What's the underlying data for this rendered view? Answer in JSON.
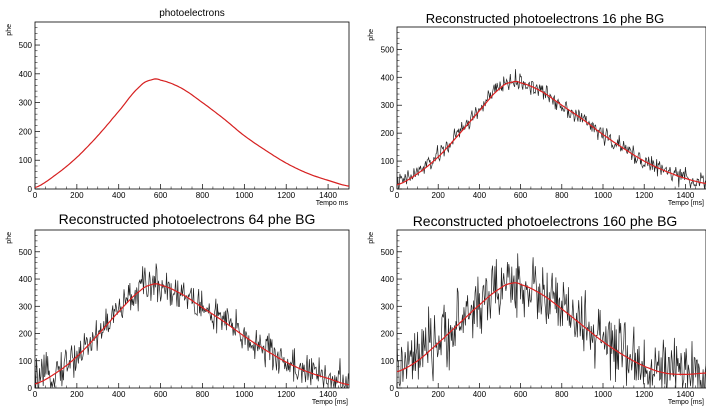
{
  "chart_data": [
    {
      "type": "line",
      "title": "photoelectrons",
      "xlabel": "Tempo ms",
      "ylabel": "phe",
      "xlim": [
        0,
        1500
      ],
      "ylim": [
        0,
        580
      ],
      "xticks": [
        "0",
        "200",
        "400",
        "600",
        "800",
        "1000",
        "1200",
        "1400"
      ],
      "yticks": [
        "0",
        "100",
        "200",
        "300",
        "400",
        "500"
      ],
      "series": [
        {
          "color": "#d62020",
          "x": [
            0,
            100,
            200,
            300,
            400,
            500,
            560,
            600,
            700,
            800,
            900,
            1000,
            1100,
            1200,
            1300,
            1400,
            1500
          ],
          "y": [
            5,
            50,
            110,
            185,
            270,
            355,
            380,
            378,
            350,
            300,
            245,
            185,
            135,
            90,
            55,
            30,
            10
          ]
        }
      ]
    },
    {
      "type": "line",
      "title": "Reconstructed photoelectrons 16 phe BG",
      "xlabel": "Tempo [ms]",
      "ylabel": "phe",
      "xlim": [
        0,
        1500
      ],
      "ylim": [
        0,
        580
      ],
      "xticks": [
        "0",
        "200",
        "400",
        "600",
        "800",
        "1000",
        "1200",
        "1400"
      ],
      "yticks": [
        "0",
        "100",
        "200",
        "300",
        "400",
        "500"
      ],
      "series": [
        {
          "color": "#222222",
          "x": [
            0,
            100,
            200,
            300,
            400,
            500,
            560,
            600,
            700,
            800,
            900,
            1000,
            1100,
            1200,
            1300,
            1400,
            1500
          ],
          "y": [
            20,
            60,
            120,
            200,
            285,
            365,
            385,
            380,
            350,
            300,
            250,
            195,
            145,
            100,
            65,
            40,
            25
          ],
          "noise": 35
        },
        {
          "color": "#e02020",
          "x": [
            0,
            100,
            200,
            300,
            400,
            500,
            560,
            600,
            700,
            800,
            900,
            1000,
            1100,
            1200,
            1300,
            1400,
            1500
          ],
          "y": [
            15,
            55,
            115,
            195,
            280,
            360,
            383,
            380,
            350,
            300,
            250,
            195,
            145,
            100,
            65,
            38,
            20
          ]
        }
      ]
    },
    {
      "type": "line",
      "title": "Reconstructed photoelectrons 64 phe BG",
      "xlabel": "Tempo [ms]",
      "ylabel": "phe",
      "xlim": [
        0,
        1500
      ],
      "ylim": [
        0,
        580
      ],
      "xticks": [
        "0",
        "200",
        "400",
        "600",
        "800",
        "1000",
        "1200",
        "1400"
      ],
      "yticks": [
        "0",
        "100",
        "200",
        "300",
        "400",
        "500"
      ],
      "series": [
        {
          "color": "#222222",
          "x": [
            0,
            100,
            200,
            300,
            400,
            500,
            560,
            600,
            700,
            800,
            900,
            1000,
            1100,
            1200,
            1300,
            1400,
            1500
          ],
          "y": [
            25,
            65,
            120,
            200,
            285,
            360,
            382,
            378,
            345,
            295,
            245,
            190,
            140,
            95,
            60,
            35,
            15
          ],
          "noise": 75
        },
        {
          "color": "#e02020",
          "x": [
            0,
            100,
            200,
            300,
            400,
            500,
            560,
            600,
            700,
            800,
            900,
            1000,
            1100,
            1200,
            1300,
            1400,
            1500
          ],
          "y": [
            15,
            55,
            115,
            195,
            280,
            355,
            380,
            378,
            345,
            295,
            245,
            190,
            140,
            95,
            60,
            35,
            12
          ]
        }
      ]
    },
    {
      "type": "line",
      "title": "Reconstructed photoelectrons 160 phe BG",
      "xlabel": "Tempo [ms]",
      "ylabel": "phe",
      "xlim": [
        0,
        1500
      ],
      "ylim": [
        0,
        580
      ],
      "xticks": [
        "0",
        "200",
        "400",
        "600",
        "800",
        "1000",
        "1200",
        "1400"
      ],
      "yticks": [
        "0",
        "100",
        "200",
        "300",
        "400",
        "500"
      ],
      "series": [
        {
          "color": "#222222",
          "x": [
            0,
            100,
            200,
            300,
            400,
            500,
            560,
            600,
            700,
            800,
            900,
            1000,
            1100,
            1200,
            1300,
            1400,
            1500
          ],
          "y": [
            70,
            110,
            170,
            240,
            310,
            370,
            385,
            380,
            345,
            290,
            230,
            170,
            120,
            80,
            60,
            55,
            60
          ],
          "noise": 130
        },
        {
          "color": "#e02020",
          "x": [
            0,
            100,
            200,
            300,
            400,
            500,
            560,
            600,
            700,
            800,
            900,
            1000,
            1100,
            1200,
            1300,
            1400,
            1500
          ],
          "y": [
            60,
            100,
            165,
            235,
            305,
            365,
            385,
            380,
            345,
            290,
            230,
            170,
            120,
            80,
            55,
            50,
            55
          ]
        }
      ]
    }
  ]
}
